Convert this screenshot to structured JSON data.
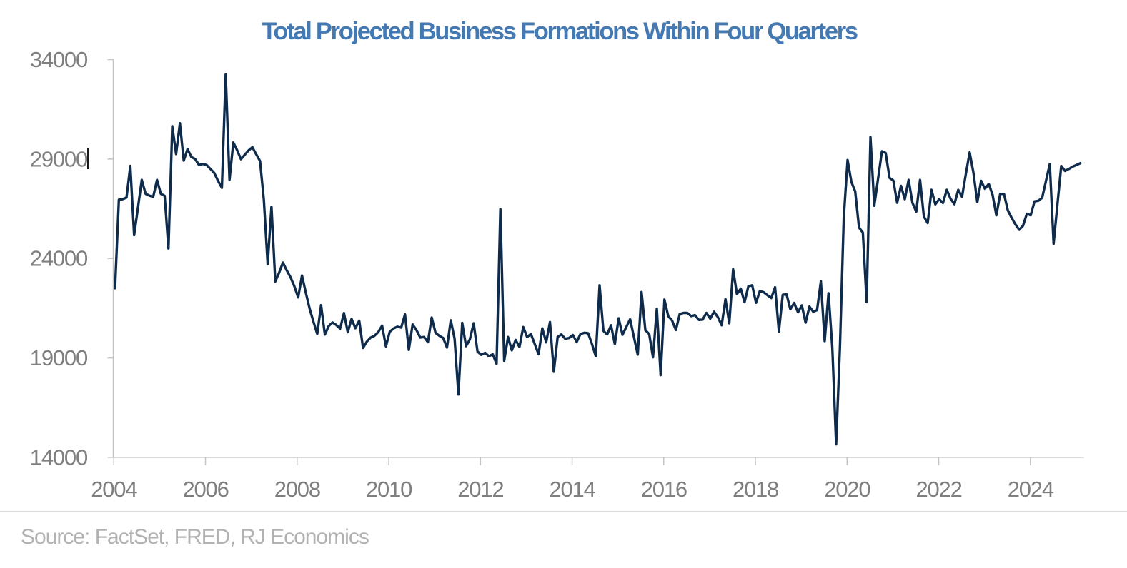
{
  "title": {
    "text": "Total Projected Business Formations Within Four Quarters",
    "color": "#4579b2"
  },
  "source": {
    "text": "Source: FactSet, FRED, RJ Economics",
    "color": "#b2b2b2"
  },
  "artifacts": {
    "text_cursor_after_label": "29000"
  },
  "chart_data": {
    "type": "line",
    "title": "Total Projected Business Formations Within Four Quarters",
    "xlabel": "",
    "ylabel": "",
    "x_start": "2004-01",
    "x_end": "2025-02",
    "frequency": "monthly",
    "x_tick_labels": [
      "2004",
      "2006",
      "2008",
      "2010",
      "2012",
      "2014",
      "2016",
      "2018",
      "2020",
      "2022",
      "2024"
    ],
    "y_tick_labels": [
      "34000",
      "29000",
      "24000",
      "19000",
      "14000"
    ],
    "ylim": [
      14000,
      34000
    ],
    "grid": false,
    "legend": "none",
    "tick_label_color": "#7f7f7f",
    "axis_color": "#c3c3c3",
    "series": [
      {
        "name": "Total projected business formations within four quarters",
        "color": "#0f2b4c",
        "values": [
          22500,
          26950,
          26980,
          27060,
          28650,
          25170,
          26550,
          27950,
          27250,
          27160,
          27100,
          27950,
          27250,
          27150,
          24500,
          30650,
          29250,
          30800,
          28920,
          29500,
          29100,
          29000,
          28700,
          28750,
          28700,
          28500,
          28300,
          27900,
          27550,
          33250,
          27950,
          29830,
          29440,
          28990,
          29215,
          29435,
          29590,
          29240,
          28900,
          26950,
          23720,
          26600,
          22840,
          23280,
          23790,
          23400,
          23050,
          22600,
          22040,
          23140,
          22280,
          21480,
          20820,
          20200,
          21650,
          20170,
          20600,
          20780,
          20650,
          20470,
          21250,
          20290,
          20960,
          20490,
          20870,
          19500,
          19820,
          20020,
          20110,
          20300,
          20620,
          19580,
          20310,
          20480,
          20570,
          20520,
          21190,
          19400,
          20680,
          20400,
          20020,
          20050,
          19790,
          21030,
          20260,
          20110,
          20000,
          19520,
          20890,
          19960,
          17160,
          20760,
          19590,
          19930,
          20740,
          19320,
          19150,
          19250,
          19080,
          19180,
          18700,
          26480,
          18850,
          20050,
          19380,
          19900,
          19550,
          20550,
          20050,
          20200,
          19700,
          19180,
          20480,
          19780,
          20800,
          18300,
          20050,
          20180,
          19960,
          20000,
          20150,
          19800,
          20200,
          20260,
          20240,
          19700,
          19080,
          22650,
          20360,
          20180,
          20640,
          19690,
          20990,
          20160,
          20550,
          20940,
          20050,
          19160,
          22310,
          20390,
          20200,
          19030,
          21470,
          18130,
          21930,
          21100,
          20880,
          20400,
          21200,
          21260,
          21260,
          21100,
          21150,
          20910,
          20920,
          21260,
          20970,
          21320,
          21050,
          20640,
          21950,
          20740,
          23450,
          22200,
          22480,
          21800,
          22600,
          22650,
          21770,
          22360,
          22300,
          22150,
          22010,
          22550,
          20330,
          22170,
          22200,
          21440,
          21760,
          21290,
          21640,
          20770,
          21580,
          21320,
          21400,
          22850,
          19840,
          22250,
          19500,
          14650,
          19550,
          26050,
          28950,
          27850,
          27370,
          25550,
          25300,
          21800,
          30100,
          26650,
          28020,
          29390,
          29300,
          28050,
          27920,
          26800,
          27650,
          26980,
          27950,
          26800,
          26350,
          27950,
          26100,
          25780,
          27450,
          26720,
          26980,
          26790,
          27450,
          27000,
          26730,
          27450,
          27100,
          28250,
          29330,
          28300,
          26830,
          27900,
          27500,
          27750,
          27200,
          26170,
          27250,
          27240,
          26420,
          26040,
          25710,
          25440,
          25650,
          26250,
          26170,
          26870,
          26900,
          27050,
          27900,
          28750,
          24740,
          26710,
          28650,
          28400,
          28500,
          28620,
          28700,
          28790
        ]
      }
    ]
  }
}
